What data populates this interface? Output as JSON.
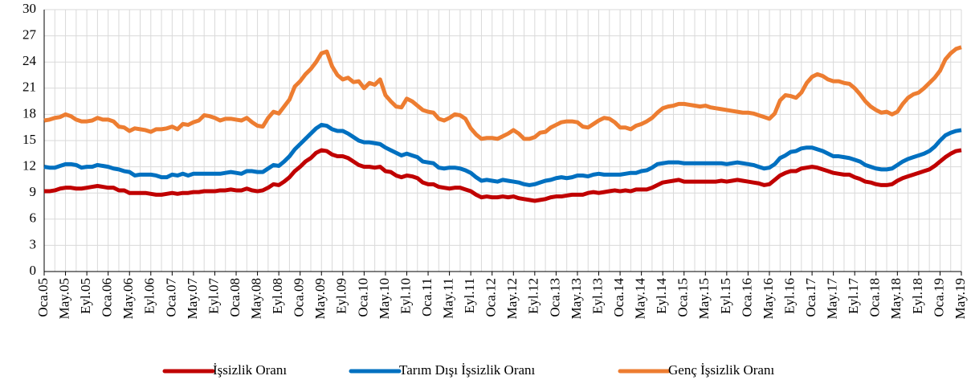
{
  "chart_data": {
    "type": "line",
    "categories": [
      "Oca.05",
      null,
      null,
      null,
      "May.05",
      null,
      null,
      null,
      "Eyl.05",
      null,
      null,
      null,
      "Oca.06",
      null,
      null,
      null,
      "May.06",
      null,
      null,
      null,
      "Eyl.06",
      null,
      null,
      null,
      "Oca.07",
      null,
      null,
      null,
      "May.07",
      null,
      null,
      null,
      "Eyl.07",
      null,
      null,
      null,
      "Oca.08",
      null,
      null,
      null,
      "May.08",
      null,
      null,
      null,
      "Eyl.08",
      null,
      null,
      null,
      "Oca.09",
      null,
      null,
      null,
      "May.09",
      null,
      null,
      null,
      "Eyl.09",
      null,
      null,
      null,
      "Oca.10",
      null,
      null,
      null,
      "May.10",
      null,
      null,
      null,
      "Eyl.10",
      null,
      null,
      null,
      "Oca.11",
      null,
      null,
      null,
      "May.11",
      null,
      null,
      null,
      "Eyl.11",
      null,
      null,
      null,
      "Oca.12",
      null,
      null,
      null,
      "May.12",
      null,
      null,
      null,
      "Eyl.12",
      null,
      null,
      null,
      "Oca.13",
      null,
      null,
      null,
      "May.13",
      null,
      null,
      null,
      "Eyl.13",
      null,
      null,
      null,
      "Oca.14",
      null,
      null,
      null,
      "May.14",
      null,
      null,
      null,
      "Eyl.14",
      null,
      null,
      null,
      "Oca.15",
      null,
      null,
      null,
      "May.15",
      null,
      null,
      null,
      "Eyl.15",
      null,
      null,
      null,
      "Oca.16",
      null,
      null,
      null,
      "May.16",
      null,
      null,
      null,
      "Eyl.16",
      null,
      null,
      null,
      "Oca.17",
      null,
      null,
      null,
      "May.17",
      null,
      null,
      null,
      "Eyl.17",
      null,
      null,
      null,
      "Oca.18",
      null,
      null,
      null,
      "May.18",
      null,
      null,
      null,
      "Eyl.18",
      null,
      null,
      null,
      "Oca.19",
      null,
      null,
      null,
      "May.19"
    ],
    "series": [
      {
        "name": "İşsizlik Oranı",
        "color": "#c00000",
        "values": [
          9.2,
          9.2,
          9.3,
          9.5,
          9.6,
          9.6,
          9.5,
          9.5,
          9.6,
          9.7,
          9.8,
          9.7,
          9.6,
          9.6,
          9.3,
          9.3,
          9.0,
          9.0,
          9.0,
          9.0,
          8.9,
          8.8,
          8.8,
          8.9,
          9.0,
          8.9,
          9.0,
          9.0,
          9.1,
          9.1,
          9.2,
          9.2,
          9.2,
          9.3,
          9.3,
          9.4,
          9.3,
          9.3,
          9.5,
          9.3,
          9.2,
          9.3,
          9.6,
          10.0,
          9.9,
          10.3,
          10.8,
          11.5,
          12.0,
          12.6,
          13.0,
          13.6,
          13.9,
          13.8,
          13.4,
          13.2,
          13.2,
          13.0,
          12.6,
          12.2,
          12.0,
          12.0,
          11.9,
          12.0,
          11.5,
          11.4,
          11.0,
          10.8,
          11.0,
          10.9,
          10.7,
          10.2,
          10.0,
          10.0,
          9.7,
          9.6,
          9.5,
          9.6,
          9.6,
          9.4,
          9.2,
          8.8,
          8.5,
          8.6,
          8.5,
          8.5,
          8.6,
          8.5,
          8.6,
          8.4,
          8.3,
          8.2,
          8.1,
          8.2,
          8.3,
          8.5,
          8.6,
          8.6,
          8.7,
          8.8,
          8.8,
          8.8,
          9.0,
          9.1,
          9.0,
          9.1,
          9.2,
          9.3,
          9.2,
          9.3,
          9.2,
          9.4,
          9.4,
          9.4,
          9.6,
          9.9,
          10.2,
          10.3,
          10.4,
          10.5,
          10.3,
          10.3,
          10.3,
          10.3,
          10.3,
          10.3,
          10.3,
          10.4,
          10.3,
          10.4,
          10.5,
          10.4,
          10.3,
          10.2,
          10.1,
          9.9,
          10.0,
          10.5,
          11.0,
          11.3,
          11.5,
          11.5,
          11.8,
          11.9,
          12.0,
          11.9,
          11.7,
          11.5,
          11.3,
          11.2,
          11.1,
          11.1,
          10.8,
          10.6,
          10.3,
          10.2,
          10.0,
          9.9,
          9.9,
          10.0,
          10.4,
          10.7,
          10.9,
          11.1,
          11.3,
          11.5,
          11.7,
          12.1,
          12.6,
          13.1,
          13.5,
          13.8,
          13.9
        ]
      },
      {
        "name": "Tarım Dışı İşsizlik Oranı",
        "color": "#0070c0",
        "values": [
          12.0,
          11.9,
          11.9,
          12.1,
          12.3,
          12.3,
          12.2,
          11.9,
          12.0,
          12.0,
          12.2,
          12.1,
          12.0,
          11.8,
          11.7,
          11.5,
          11.4,
          11.0,
          11.1,
          11.1,
          11.1,
          11.0,
          10.8,
          10.8,
          11.1,
          11.0,
          11.2,
          11.0,
          11.2,
          11.2,
          11.2,
          11.2,
          11.2,
          11.2,
          11.3,
          11.4,
          11.3,
          11.2,
          11.5,
          11.5,
          11.4,
          11.4,
          11.8,
          12.2,
          12.1,
          12.6,
          13.2,
          14.0,
          14.6,
          15.2,
          15.8,
          16.4,
          16.8,
          16.7,
          16.3,
          16.1,
          16.1,
          15.8,
          15.4,
          15.0,
          14.8,
          14.8,
          14.7,
          14.6,
          14.2,
          13.9,
          13.6,
          13.3,
          13.5,
          13.3,
          13.1,
          12.6,
          12.5,
          12.4,
          11.9,
          11.8,
          11.9,
          11.9,
          11.8,
          11.6,
          11.3,
          10.8,
          10.4,
          10.5,
          10.4,
          10.3,
          10.5,
          10.4,
          10.3,
          10.2,
          10.0,
          9.9,
          10.0,
          10.2,
          10.4,
          10.5,
          10.7,
          10.8,
          10.7,
          10.8,
          11.0,
          11.0,
          10.9,
          11.1,
          11.2,
          11.1,
          11.1,
          11.1,
          11.1,
          11.2,
          11.3,
          11.3,
          11.5,
          11.6,
          11.9,
          12.3,
          12.4,
          12.5,
          12.5,
          12.5,
          12.4,
          12.4,
          12.4,
          12.4,
          12.4,
          12.4,
          12.4,
          12.4,
          12.3,
          12.4,
          12.5,
          12.4,
          12.3,
          12.2,
          12.0,
          11.8,
          11.9,
          12.3,
          13.0,
          13.3,
          13.7,
          13.8,
          14.1,
          14.2,
          14.2,
          14.0,
          13.8,
          13.5,
          13.2,
          13.2,
          13.1,
          13.0,
          12.8,
          12.6,
          12.2,
          12.0,
          11.8,
          11.7,
          11.7,
          11.8,
          12.2,
          12.6,
          12.9,
          13.1,
          13.3,
          13.5,
          13.8,
          14.3,
          15.0,
          15.6,
          15.9,
          16.1,
          16.2
        ]
      },
      {
        "name": "Genç İşsizlik Oranı",
        "color": "#ed7d31",
        "values": [
          17.3,
          17.4,
          17.6,
          17.7,
          18.0,
          17.8,
          17.4,
          17.2,
          17.2,
          17.3,
          17.6,
          17.4,
          17.4,
          17.2,
          16.6,
          16.5,
          16.1,
          16.4,
          16.3,
          16.2,
          16.0,
          16.3,
          16.3,
          16.4,
          16.6,
          16.3,
          16.9,
          16.8,
          17.1,
          17.3,
          17.9,
          17.8,
          17.6,
          17.3,
          17.5,
          17.5,
          17.4,
          17.3,
          17.6,
          17.1,
          16.7,
          16.6,
          17.6,
          18.3,
          18.1,
          18.9,
          19.7,
          21.2,
          21.8,
          22.6,
          23.2,
          24.0,
          25.0,
          25.2,
          23.5,
          22.5,
          22.0,
          22.2,
          21.7,
          21.8,
          21.0,
          21.6,
          21.4,
          22.0,
          20.2,
          19.5,
          18.9,
          18.8,
          19.8,
          19.5,
          19.0,
          18.5,
          18.3,
          18.2,
          17.5,
          17.3,
          17.6,
          18.0,
          17.9,
          17.5,
          16.4,
          15.7,
          15.2,
          15.3,
          15.3,
          15.2,
          15.5,
          15.8,
          16.2,
          15.8,
          15.2,
          15.2,
          15.4,
          15.9,
          16.0,
          16.5,
          16.8,
          17.1,
          17.2,
          17.2,
          17.1,
          16.6,
          16.5,
          16.9,
          17.3,
          17.6,
          17.5,
          17.1,
          16.5,
          16.5,
          16.3,
          16.7,
          16.9,
          17.2,
          17.6,
          18.2,
          18.7,
          18.9,
          19.0,
          19.2,
          19.2,
          19.1,
          19.0,
          18.9,
          19.0,
          18.8,
          18.7,
          18.6,
          18.5,
          18.4,
          18.3,
          18.2,
          18.2,
          18.1,
          17.9,
          17.7,
          17.5,
          18.1,
          19.6,
          20.2,
          20.1,
          19.9,
          20.5,
          21.6,
          22.3,
          22.6,
          22.4,
          22.0,
          21.8,
          21.8,
          21.6,
          21.5,
          21.0,
          20.3,
          19.5,
          18.9,
          18.5,
          18.2,
          18.3,
          18.0,
          18.3,
          19.2,
          19.9,
          20.3,
          20.5,
          21.0,
          21.6,
          22.2,
          23.0,
          24.3,
          25.0,
          25.5,
          25.7
        ]
      }
    ],
    "ylim": [
      0,
      30
    ],
    "yticks": [
      0,
      3,
      6,
      9,
      12,
      15,
      18,
      21,
      24,
      27,
      30
    ],
    "grid": true,
    "legend": "bottom"
  }
}
